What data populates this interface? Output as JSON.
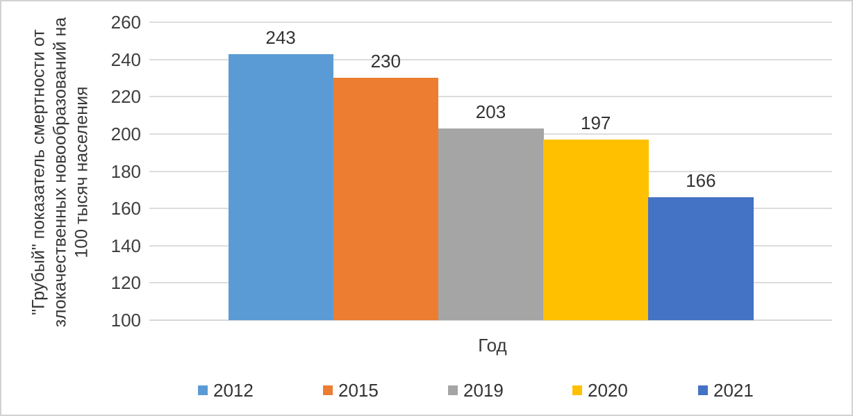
{
  "chart_data": {
    "type": "bar",
    "title": "",
    "xlabel": "Год",
    "ylabel": "\"Грубый\" показатель смертности от злокачественных новообразований на 100 тысяч населения",
    "ylabel_lines": [
      "\"Грубый\" показатель смертности от",
      "злокачественных новообразований на",
      "100 тысяч населения"
    ],
    "ylim": [
      100,
      260
    ],
    "yticks": [
      100,
      120,
      140,
      160,
      180,
      200,
      220,
      240,
      260
    ],
    "grid": "horizontal",
    "legend_position": "bottom",
    "categories": [
      "2012",
      "2015",
      "2019",
      "2020",
      "2021"
    ],
    "values": [
      243,
      230,
      203,
      197,
      166
    ],
    "series": [
      {
        "name": "2012",
        "value": 243,
        "color": "#5B9BD5"
      },
      {
        "name": "2015",
        "value": 230,
        "color": "#ED7D31"
      },
      {
        "name": "2019",
        "value": 203,
        "color": "#A5A5A5"
      },
      {
        "name": "2020",
        "value": 197,
        "color": "#FFC000"
      },
      {
        "name": "2021",
        "value": 166,
        "color": "#4472C4"
      }
    ],
    "colors": {
      "gridline": "#DCDCDC",
      "axis_text": "#3F3F3F",
      "label_text": "#333333"
    }
  }
}
